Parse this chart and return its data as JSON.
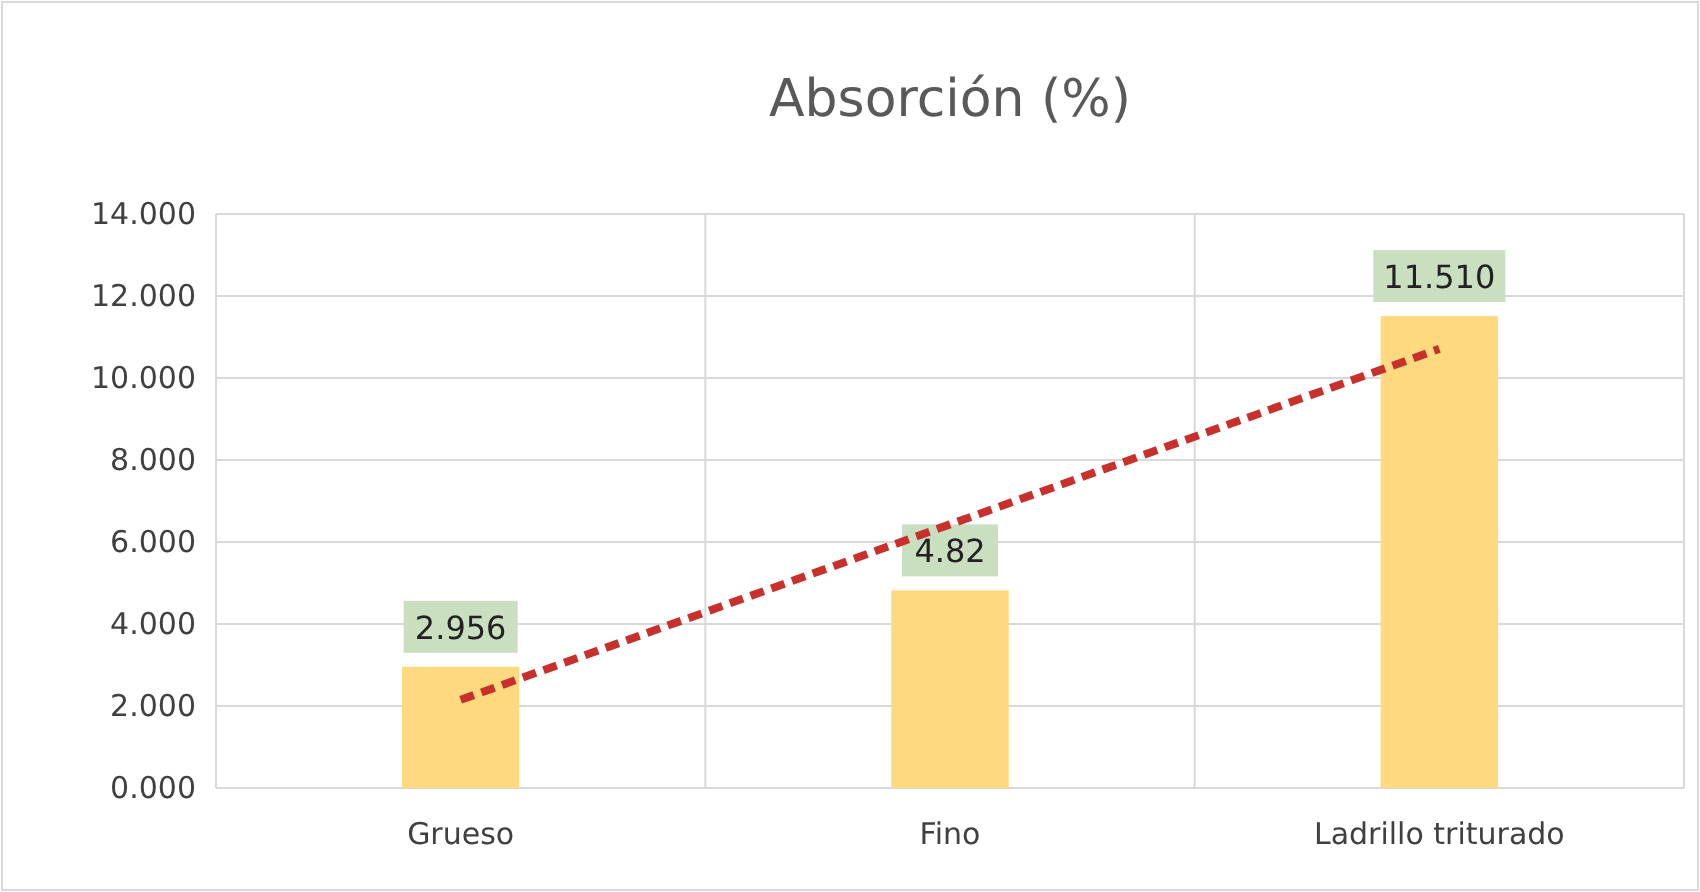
{
  "chart_data": {
    "type": "bar",
    "title": "Absorción (%)",
    "categories": [
      "Grueso",
      "Fino",
      "Ladrillo triturado"
    ],
    "series": [
      {
        "color": "#ffd980",
        "values": [
          2.956,
          4.82,
          11.51
        ],
        "value_labels": [
          "2.956",
          "4.82",
          "11.510"
        ]
      },
      {
        "type": "line",
        "color": "#c8302c",
        "values": [
          2.15,
          6.43,
          10.71
        ],
        "line_style": "dashed",
        "marker": "none"
      }
    ],
    "ylim": [
      0,
      14
    ],
    "yticks": [
      {
        "value": 0,
        "label": "0.000"
      },
      {
        "value": 2,
        "label": "2.000"
      },
      {
        "value": 4,
        "label": "4.000"
      },
      {
        "value": 6,
        "label": "6.000"
      },
      {
        "value": 8,
        "label": "8.000"
      },
      {
        "value": 10,
        "label": "10.000"
      },
      {
        "value": 12,
        "label": "12.000"
      },
      {
        "value": 14,
        "label": "14.000"
      }
    ],
    "grid": true
  }
}
